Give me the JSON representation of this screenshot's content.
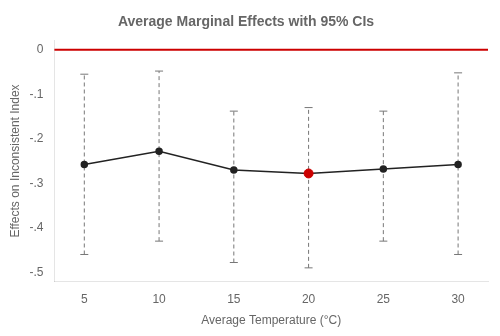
{
  "chart_data": {
    "type": "line",
    "title": "Average Marginal Effects with 95% CIs",
    "xlabel": "Average Temperature (°C)",
    "ylabel": "Effects on Inconsistent Index",
    "x": [
      5,
      10,
      15,
      20,
      25,
      30
    ],
    "series": [
      {
        "values": [
          -0.258,
          -0.228,
          -0.27,
          -0.278,
          -0.268,
          -0.258
        ],
        "color": "#222222",
        "marker": "circle",
        "ci_upper": [
          -0.055,
          -0.048,
          -0.138,
          -0.13,
          -0.138,
          -0.052
        ],
        "ci_lower": [
          -0.46,
          -0.43,
          -0.478,
          -0.49,
          -0.43,
          -0.46
        ],
        "ci_color": "#777777"
      }
    ],
    "highlight": {
      "index": 3,
      "color": "#cc0000"
    },
    "hline": {
      "y": 0,
      "color": "#cc0000"
    },
    "xlim": [
      3.0,
      32.0
    ],
    "xticks": [
      5,
      10,
      15,
      20,
      25,
      30
    ],
    "ylim": [
      -0.52,
      0.02
    ],
    "yticks": [
      0,
      {
        "value": -0.1,
        "label": "-.1"
      },
      {
        "value": -0.2,
        "label": "-.2"
      },
      {
        "value": -0.3,
        "label": "-.3"
      },
      {
        "value": -0.4,
        "label": "-.4"
      },
      {
        "value": -0.5,
        "label": "-.5"
      }
    ],
    "grid": false
  }
}
